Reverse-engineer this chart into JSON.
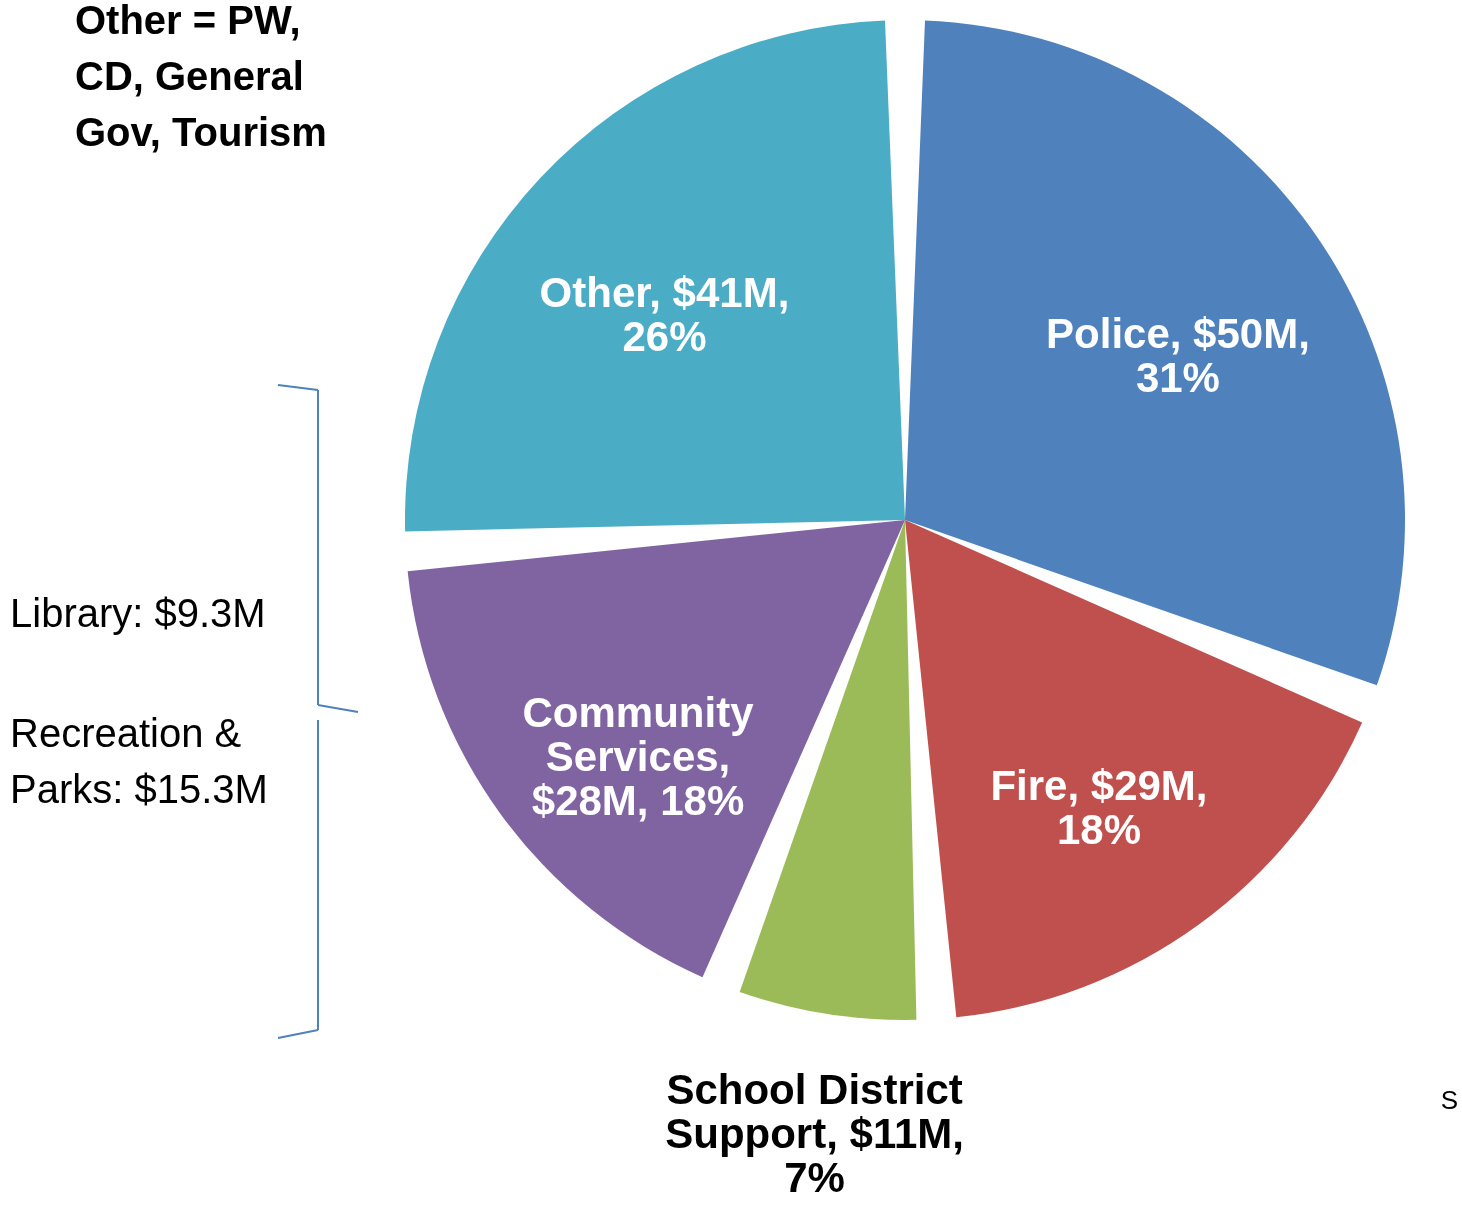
{
  "chart_data": {
    "type": "pie",
    "categories": [
      "Police",
      "Fire",
      "School District Support",
      "Community Services",
      "Other"
    ],
    "values": [
      31,
      18,
      7,
      18,
      26
    ],
    "colors": [
      "#4f81bd",
      "#c0504d",
      "#9bbb59",
      "#8064a2",
      "#4bacc6"
    ],
    "value_labels": [
      ",  $50M,\n31%",
      ",  $29M,\n18%",
      ",  $11M,\n7%",
      ",\n$28M, 18%",
      ",  $41M,\n26%"
    ],
    "annotations": [
      "Other = PW, CD, General Gov, Tourism",
      "Library: $9.3M",
      "Recreation & Parks: $15.3M",
      "S"
    ]
  }
}
